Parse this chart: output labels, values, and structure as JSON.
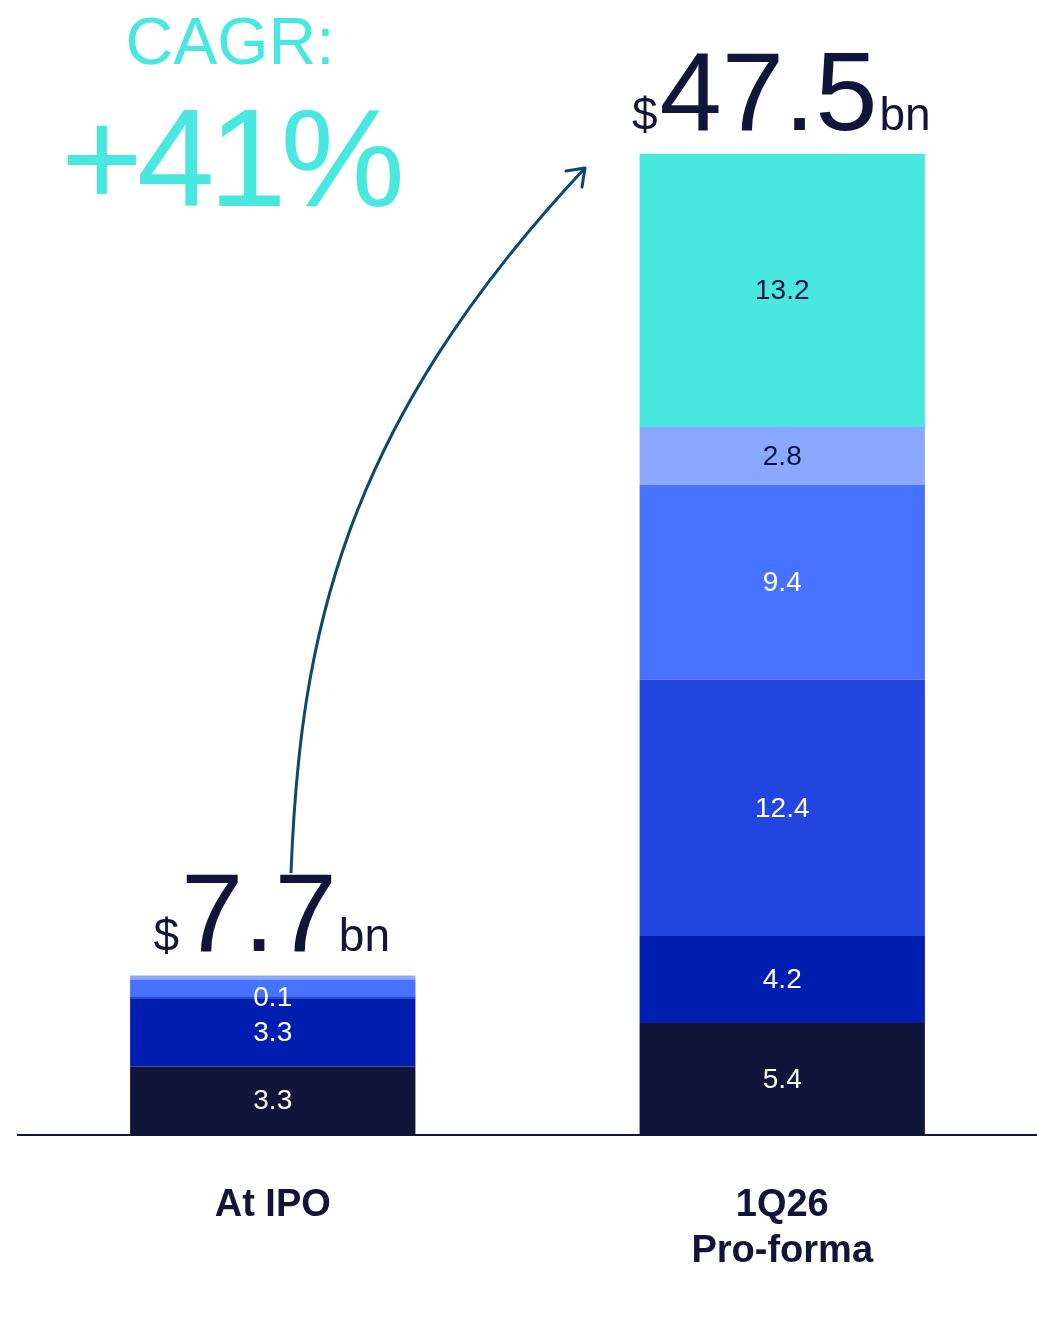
{
  "chart_data": {
    "type": "bar",
    "stacked": true,
    "categories": [
      "At IPO",
      "1Q26\nPro-forma"
    ],
    "series": [
      {
        "color": "#11153a",
        "values": [
          3.3,
          5.4
        ],
        "value_labels": [
          "3.3",
          "5.4"
        ]
      },
      {
        "color": "#001eb0",
        "values": [
          3.3,
          4.2
        ],
        "value_labels": [
          "3.3",
          "4.2"
        ]
      },
      {
        "color": "#2446e0",
        "values": [
          0.1,
          12.4
        ],
        "value_labels": [
          "0.1",
          "12.4"
        ]
      },
      {
        "color": "#4672ff",
        "values": [
          0.8,
          9.4
        ],
        "value_labels": [
          null,
          "9.4"
        ]
      },
      {
        "color": "#8aa8ff",
        "values": [
          0.2,
          2.8
        ],
        "value_labels": [
          null,
          "2.8"
        ]
      },
      {
        "color": "#48e8e0",
        "values": [
          null,
          13.2
        ],
        "value_labels": [
          null,
          "13.2"
        ]
      }
    ],
    "totals": [
      "$7.7bn",
      "$47.5bn"
    ],
    "annotations": [
      "CAGR:",
      "+41%"
    ],
    "grid": false,
    "legend": false,
    "tick_labels": "x"
  }
}
